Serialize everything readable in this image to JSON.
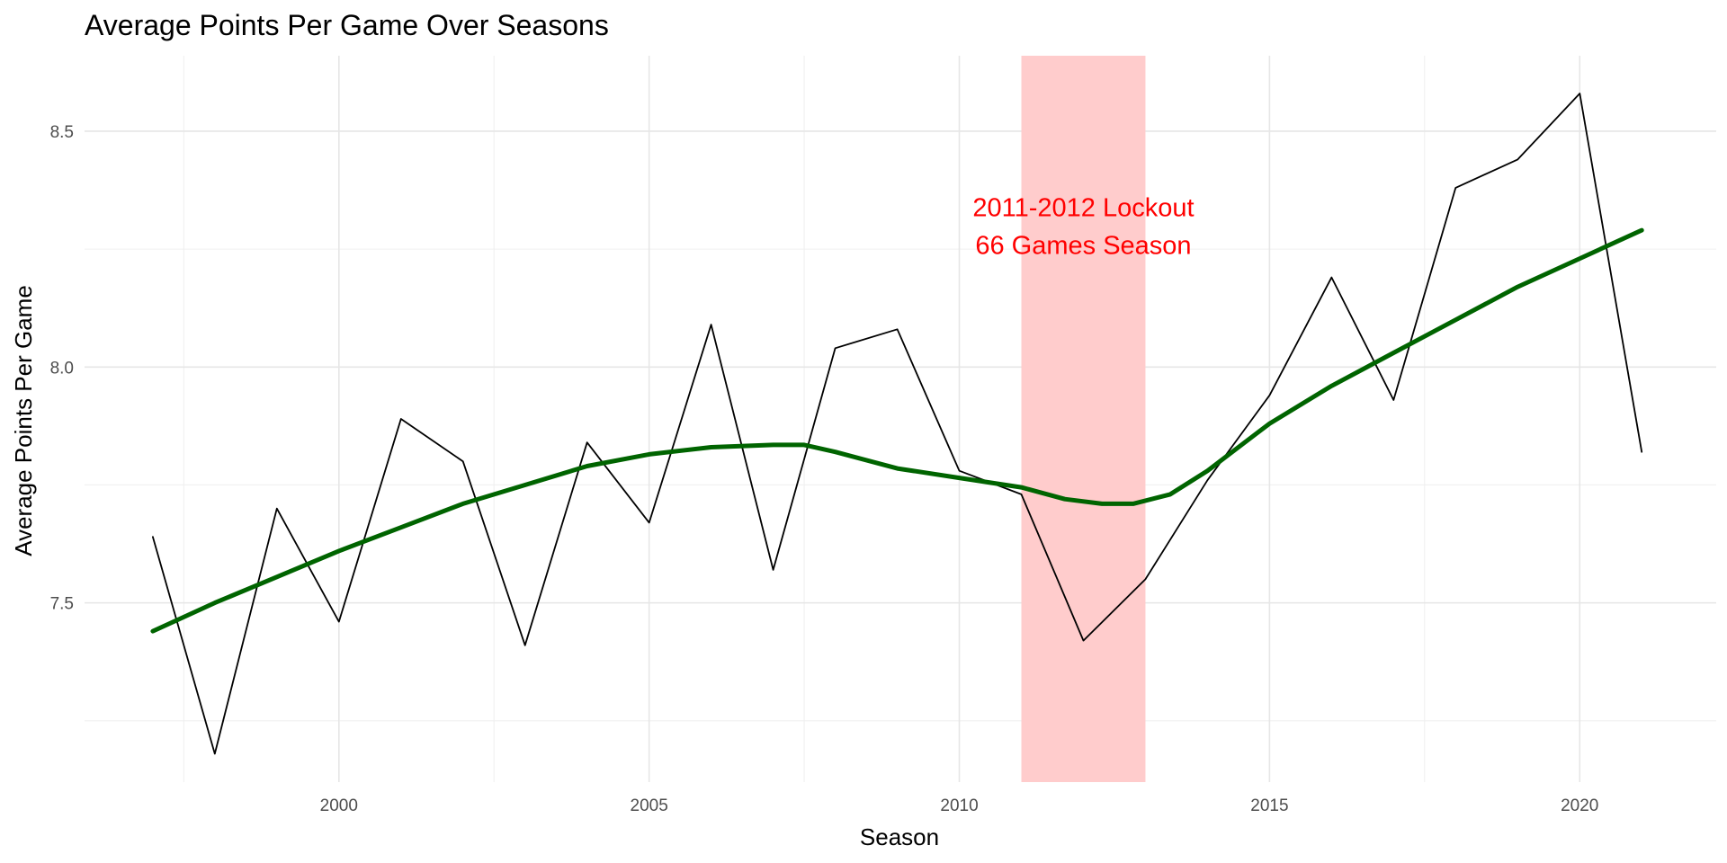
{
  "chart_data": {
    "type": "line",
    "title": "Average Points Per Game Over Seasons",
    "xlabel": "Season",
    "ylabel": "Average Points Per Game",
    "xlim": [
      1995.9,
      2022.2
    ],
    "ylim": [
      7.12,
      8.66
    ],
    "x_ticks": [
      2000,
      2005,
      2010,
      2015,
      2020
    ],
    "x_tick_labels": [
      "2000",
      "2005",
      "2010",
      "2015",
      "2020"
    ],
    "y_ticks": [
      7.5,
      8.0,
      8.5
    ],
    "y_tick_labels": [
      "7.5",
      "8.0",
      "8.5"
    ],
    "grid": true,
    "series": [
      {
        "color": "#000000",
        "x": [
          1997,
          1998,
          1999,
          2000,
          2001,
          2002,
          2003,
          2004,
          2005,
          2006,
          2007,
          2008,
          2009,
          2010,
          2011,
          2012,
          2013,
          2014,
          2015,
          2016,
          2017,
          2018,
          2019,
          2020,
          2021
        ],
        "y": [
          7.64,
          7.18,
          7.7,
          7.46,
          7.89,
          7.8,
          7.41,
          7.84,
          7.67,
          8.09,
          7.57,
          8.04,
          8.08,
          7.78,
          7.73,
          7.42,
          7.55,
          7.76,
          7.94,
          8.19,
          7.93,
          8.38,
          8.44,
          8.58,
          7.82
        ]
      },
      {
        "color": "#006400",
        "x": [
          1997,
          1998,
          1999,
          2000,
          2001,
          2002,
          2003,
          2004,
          2005,
          2006,
          2007,
          2007.5,
          2008,
          2009,
          2010,
          2011,
          2011.7,
          2012.3,
          2012.8,
          2013.4,
          2014,
          2015,
          2016,
          2017,
          2018,
          2019,
          2020,
          2021
        ],
        "y": [
          7.44,
          7.5,
          7.555,
          7.61,
          7.66,
          7.71,
          7.75,
          7.79,
          7.815,
          7.83,
          7.835,
          7.835,
          7.82,
          7.785,
          7.765,
          7.745,
          7.72,
          7.71,
          7.71,
          7.73,
          7.78,
          7.88,
          7.96,
          8.03,
          8.1,
          8.17,
          8.23,
          8.29
        ]
      }
    ],
    "shaded_region": {
      "x": [
        2011,
        2013
      ],
      "color": "#ffcccc"
    },
    "annotations": [
      "2011-2012 Lockout",
      "66 Games Season"
    ],
    "annotation_position": {
      "x": 2012,
      "y": [
        8.32,
        8.24
      ]
    }
  }
}
